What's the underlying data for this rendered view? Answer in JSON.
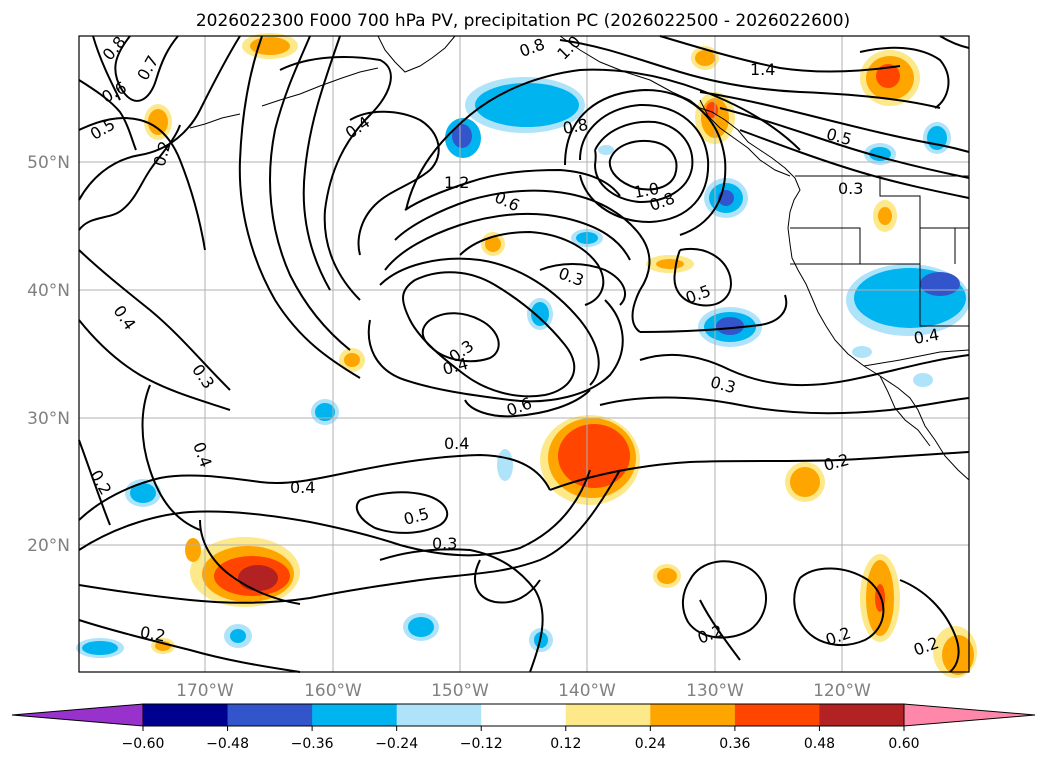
{
  "title": "2026022300 F000 700 hPa PV, precipitation PC (2026022500 - 2026022600)",
  "lat_labels": [
    "50°N",
    "40°N",
    "30°N",
    "20°N"
  ],
  "lon_labels": [
    "170°W",
    "160°W",
    "150°W",
    "140°W",
    "130°W",
    "120°W"
  ],
  "colorbar": {
    "ticks": [
      "−0.60",
      "−0.48",
      "−0.36",
      "−0.24",
      "−0.12",
      "0.12",
      "0.24",
      "0.36",
      "0.48",
      "0.60"
    ],
    "levels": [
      -0.6,
      -0.48,
      -0.36,
      -0.24,
      -0.12,
      0.12,
      0.24,
      0.36,
      0.48,
      0.6
    ],
    "colors": {
      "below_min": "#9932cc",
      "neg_060_048": "#000090",
      "neg_048_036": "#3355cc",
      "neg_036_024": "#00b4f0",
      "neg_024_012": "#aee3fa",
      "neutral": "#ffffff",
      "pos_012_024": "#fde88a",
      "pos_024_036": "#ffa500",
      "pos_036_048": "#ff4500",
      "pos_048_060": "#b22222",
      "above_max": "#ff88aa"
    }
  },
  "contour_labels": [
    "0.8",
    "0.7",
    "0.6",
    "0.5",
    "0.2",
    "0.4",
    "1.2",
    "0.8",
    "1.0",
    "0.8",
    "1.4",
    "0.5",
    "0.3",
    "0.6",
    "0.3",
    "0.5",
    "0.4",
    "0.3",
    "0.4",
    "0.3",
    "0.6",
    "0.3",
    "0.4",
    "0.4",
    "0.5",
    "0.3",
    "0.2",
    "0.2",
    "0.2",
    "0.2",
    "0.2",
    "0.4",
    "0.2",
    "0.4",
    "1.0",
    "0.8"
  ]
}
